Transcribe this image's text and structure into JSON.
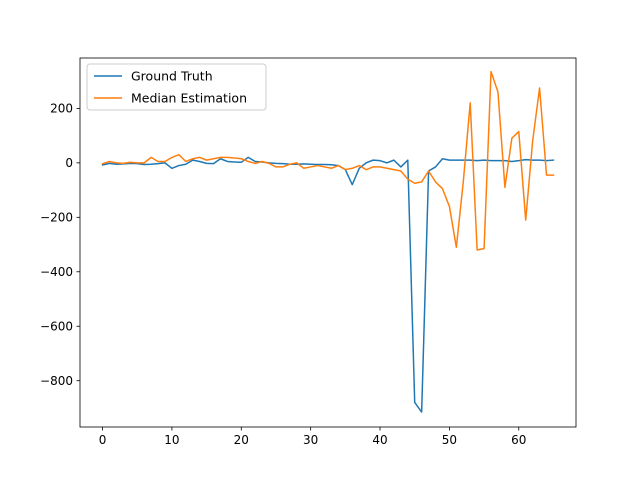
{
  "chart_data": {
    "type": "line",
    "title": "",
    "xlabel": "",
    "ylabel": "",
    "xlim": [
      -3.25,
      68.25
    ],
    "ylim": [
      -970,
      385
    ],
    "x_ticks": [
      0,
      10,
      20,
      30,
      40,
      50,
      60
    ],
    "y_ticks": [
      -800,
      -600,
      -400,
      -200,
      0,
      200
    ],
    "x_tick_labels": [
      "0",
      "10",
      "20",
      "30",
      "40",
      "50",
      "60"
    ],
    "y_tick_labels": [
      "−800",
      "−600",
      "−400",
      "−200",
      "0",
      "200"
    ],
    "grid": false,
    "legend_placement": "upper-left",
    "x": [
      0,
      1,
      2,
      3,
      4,
      5,
      6,
      7,
      8,
      9,
      10,
      11,
      12,
      13,
      14,
      15,
      16,
      17,
      18,
      19,
      20,
      21,
      22,
      23,
      24,
      25,
      26,
      27,
      28,
      29,
      30,
      31,
      32,
      33,
      34,
      35,
      36,
      37,
      38,
      39,
      40,
      41,
      42,
      43,
      44,
      45,
      46,
      47,
      48,
      49,
      50,
      51,
      52,
      53,
      54,
      55,
      56,
      57,
      58,
      59,
      60,
      61,
      62,
      63,
      64,
      65
    ],
    "series": [
      {
        "name": "Ground Truth",
        "color": "#1f77b4",
        "values": [
          -8,
          -2,
          -5,
          -4,
          -2,
          -3,
          -6,
          -5,
          -3,
          0,
          -20,
          -10,
          -5,
          10,
          5,
          -2,
          -3,
          15,
          5,
          3,
          2,
          20,
          5,
          3,
          0,
          -2,
          -3,
          -5,
          -5,
          -4,
          -5,
          -6,
          -6,
          -7,
          -10,
          -25,
          -80,
          -20,
          0,
          10,
          8,
          0,
          10,
          -15,
          10,
          -880,
          -915,
          -30,
          -15,
          15,
          10,
          10,
          10,
          10,
          8,
          10,
          8,
          8,
          8,
          5,
          8,
          12,
          10,
          10,
          8,
          10
        ]
      },
      {
        "name": "Median Estimation",
        "color": "#ff7f0e",
        "values": [
          -3,
          5,
          0,
          -2,
          2,
          0,
          0,
          20,
          5,
          5,
          20,
          30,
          5,
          15,
          20,
          10,
          15,
          20,
          20,
          18,
          15,
          5,
          -2,
          5,
          -2,
          -15,
          -15,
          -5,
          0,
          -20,
          -15,
          -10,
          -15,
          -20,
          -10,
          -25,
          -20,
          -10,
          -25,
          -15,
          -15,
          -20,
          -25,
          -30,
          -60,
          -75,
          -70,
          -30,
          -70,
          -95,
          -160,
          -310,
          -70,
          220,
          -320,
          -315,
          335,
          260,
          -90,
          90,
          115,
          -210,
          80,
          275,
          -45,
          -45
        ]
      }
    ]
  }
}
